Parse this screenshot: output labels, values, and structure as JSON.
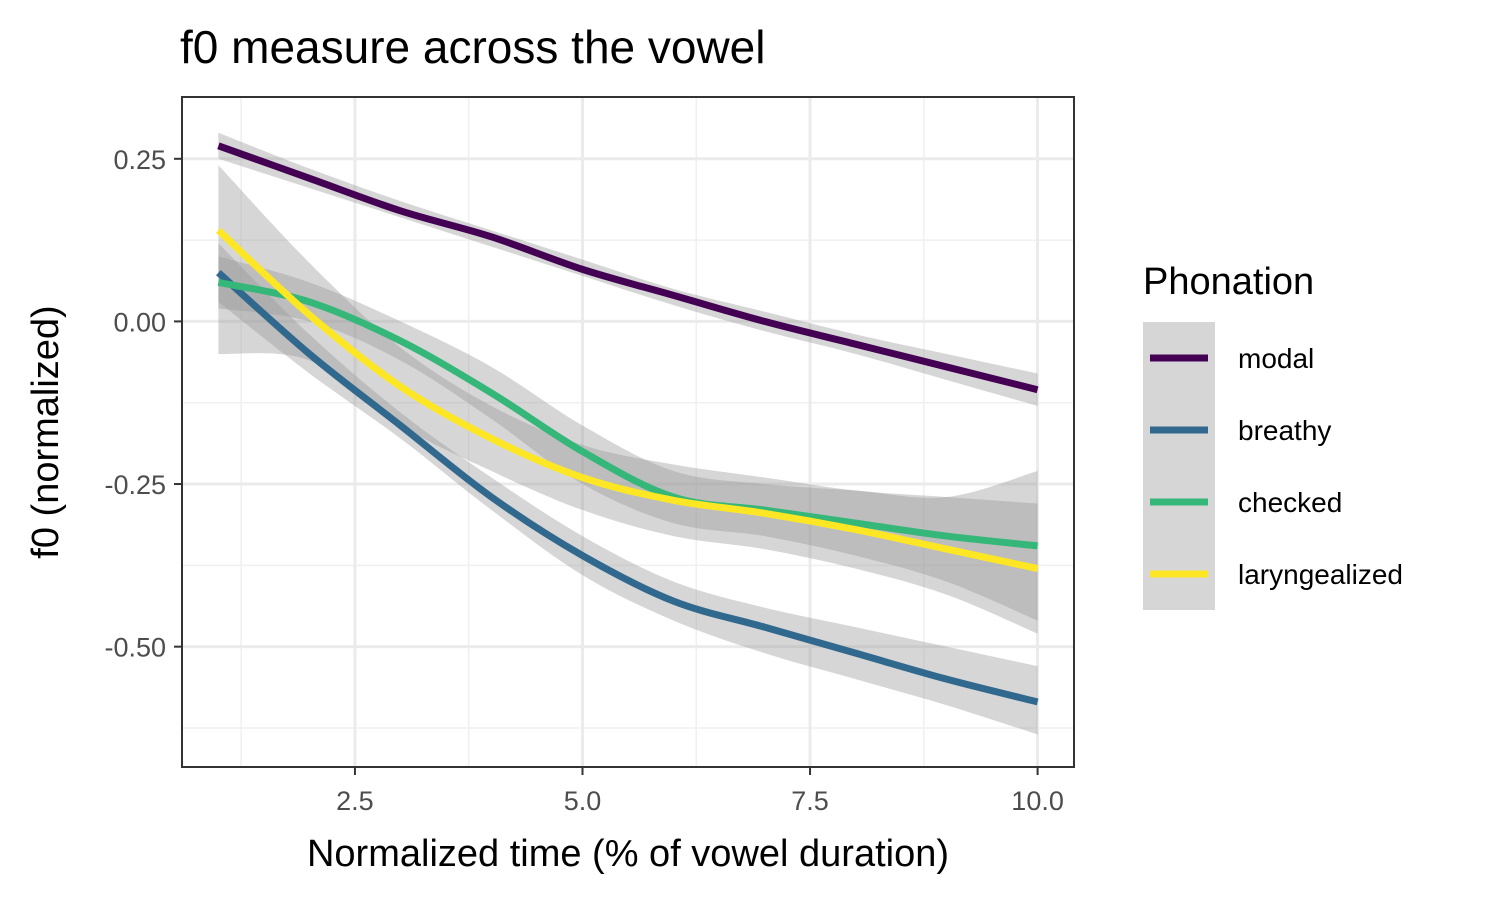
{
  "chart_data": {
    "type": "line",
    "title": "f0 measure across the vowel",
    "xlabel": "Normalized time (% of vowel duration)",
    "ylabel": "f0 (normalized)",
    "xlim": [
      0.6,
      10.4
    ],
    "ylim": [
      -0.685,
      0.345
    ],
    "x_ticks": [
      2.5,
      5.0,
      7.5,
      10.0
    ],
    "x_tick_labels": [
      "2.5",
      "5.0",
      "7.5",
      "10.0"
    ],
    "x_minor_ticks": [
      1.25,
      3.75,
      6.25,
      8.75
    ],
    "y_ticks": [
      0.25,
      0.0,
      -0.25,
      -0.5
    ],
    "y_tick_labels": [
      "0.25",
      "0.00",
      "-0.25",
      "-0.50"
    ],
    "y_minor_ticks": [
      0.125,
      -0.125,
      -0.375,
      -0.625
    ],
    "grid": true,
    "legend": {
      "title": "Phonation",
      "position": "right"
    },
    "band_color": "#999999",
    "x": [
      1,
      2,
      3,
      4,
      5,
      6,
      7,
      8,
      9,
      10
    ],
    "series": [
      {
        "name": "modal",
        "color": "#440154",
        "values": [
          0.27,
          0.22,
          0.17,
          0.13,
          0.08,
          0.04,
          0.0,
          -0.035,
          -0.07,
          -0.105
        ],
        "lower": [
          0.25,
          0.205,
          0.16,
          0.115,
          0.07,
          0.025,
          -0.015,
          -0.05,
          -0.09,
          -0.13
        ],
        "upper": [
          0.29,
          0.235,
          0.185,
          0.14,
          0.095,
          0.05,
          0.015,
          -0.02,
          -0.05,
          -0.08
        ]
      },
      {
        "name": "breathy",
        "color": "#31688E",
        "values": [
          0.075,
          -0.05,
          -0.16,
          -0.27,
          -0.36,
          -0.43,
          -0.47,
          -0.51,
          -0.55,
          -0.585
        ],
        "lower": [
          0.03,
          -0.08,
          -0.18,
          -0.29,
          -0.39,
          -0.46,
          -0.51,
          -0.55,
          -0.59,
          -0.635
        ],
        "upper": [
          0.12,
          -0.02,
          -0.14,
          -0.24,
          -0.33,
          -0.4,
          -0.44,
          -0.47,
          -0.5,
          -0.53
        ]
      },
      {
        "name": "checked",
        "color": "#35B779",
        "values": [
          0.06,
          0.03,
          -0.03,
          -0.11,
          -0.2,
          -0.27,
          -0.29,
          -0.31,
          -0.33,
          -0.345
        ],
        "lower": [
          0.02,
          0.0,
          -0.06,
          -0.15,
          -0.25,
          -0.31,
          -0.33,
          -0.36,
          -0.4,
          -0.46
        ],
        "upper": [
          0.1,
          0.06,
          0.0,
          -0.07,
          -0.16,
          -0.23,
          -0.25,
          -0.26,
          -0.27,
          -0.23
        ]
      },
      {
        "name": "laryngealized",
        "color": "#FDE725",
        "values": [
          0.14,
          0.01,
          -0.1,
          -0.18,
          -0.24,
          -0.275,
          -0.295,
          -0.32,
          -0.35,
          -0.38
        ],
        "lower": [
          -0.05,
          -0.06,
          -0.16,
          -0.23,
          -0.29,
          -0.33,
          -0.35,
          -0.38,
          -0.42,
          -0.48
        ],
        "upper": [
          0.24,
          0.09,
          -0.04,
          -0.13,
          -0.19,
          -0.22,
          -0.24,
          -0.26,
          -0.27,
          -0.28
        ]
      }
    ]
  }
}
